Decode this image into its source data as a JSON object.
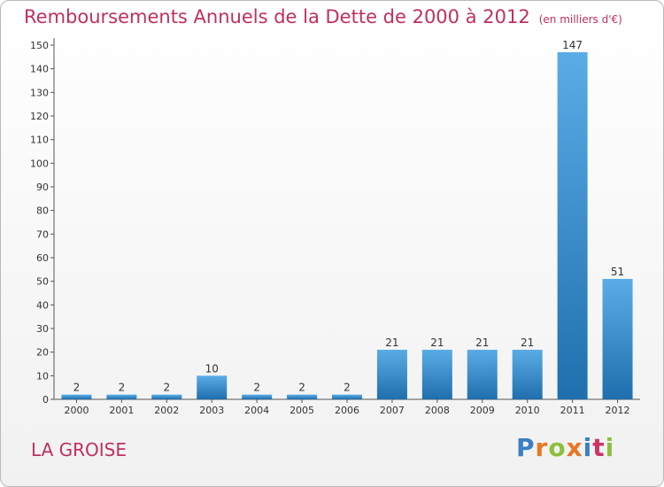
{
  "header": {
    "title": "Remboursements Annuels de la Dette de 2000 à 2012",
    "unit": "(en milliers d'€)"
  },
  "footer": {
    "city": "LA GROISE",
    "logo_text": "Proxiti"
  },
  "colors": {
    "title": "#c0305c",
    "bar_light": "#5aace6",
    "bar_dark": "#1f6fae",
    "logo_letters": [
      "#3b7fc4",
      "#e87722",
      "#8dbf3c",
      "#e87722",
      "#3b7fc4",
      "#cc3366",
      "#8dbf3c"
    ]
  },
  "chart_data": {
    "type": "bar",
    "categories": [
      "2000",
      "2001",
      "2002",
      "2003",
      "2004",
      "2005",
      "2006",
      "2007",
      "2008",
      "2009",
      "2010",
      "2011",
      "2012"
    ],
    "values": [
      2,
      2,
      2,
      10,
      2,
      2,
      2,
      21,
      21,
      21,
      21,
      147,
      51
    ],
    "data_labels": [
      "2",
      "2",
      "2",
      "10",
      "2",
      "2",
      "2",
      "21",
      "21",
      "21",
      "21",
      "147",
      "51"
    ],
    "ylim": [
      0,
      150
    ],
    "yticks": [
      0,
      10,
      20,
      30,
      40,
      50,
      60,
      70,
      80,
      90,
      100,
      110,
      120,
      130,
      140,
      150
    ],
    "grid": false,
    "legend": "none"
  }
}
